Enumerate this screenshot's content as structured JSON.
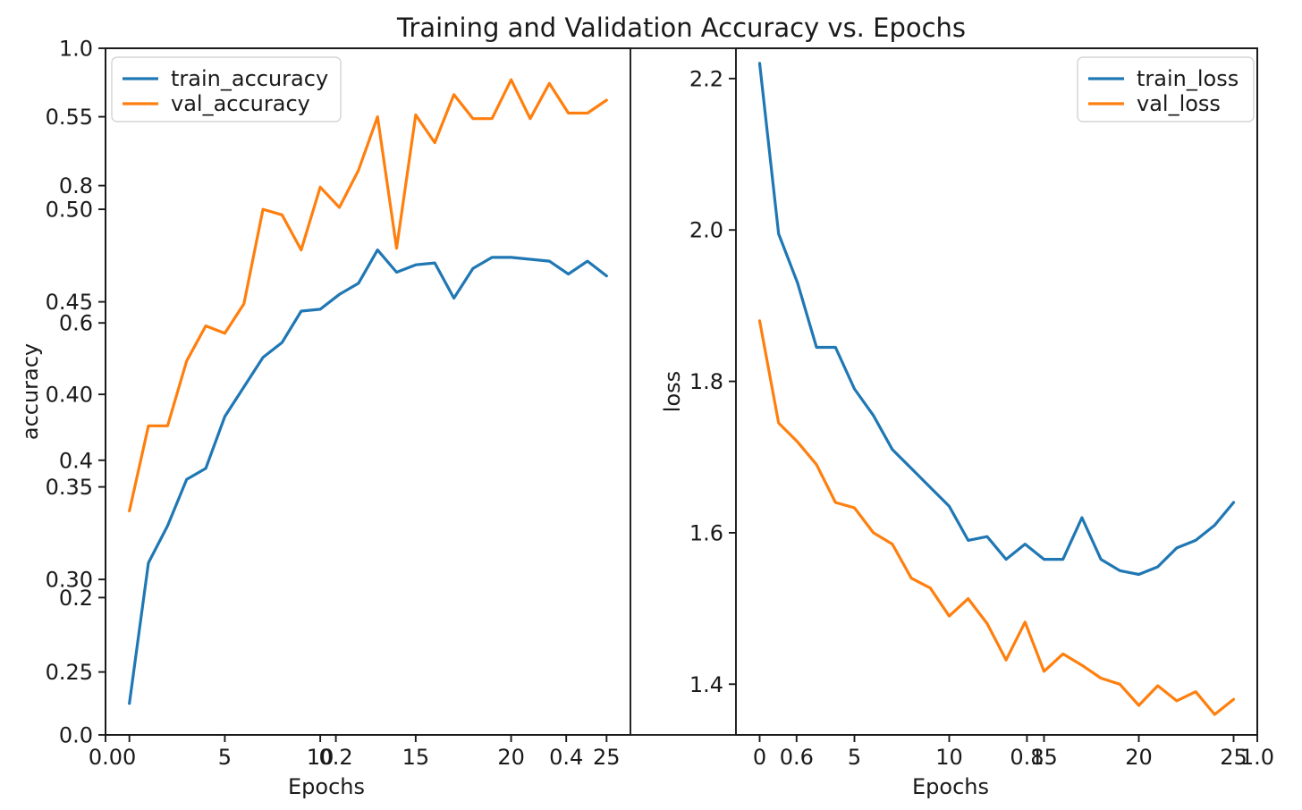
{
  "figure": {
    "title": "Training and Validation Accuracy vs. Epochs",
    "background": "#ffffff",
    "text_color": "#1a1a1a",
    "spine_color": "#1a1a1a"
  },
  "overlay_axes": {
    "xlim": [
      0,
      1
    ],
    "ylim": [
      0,
      1
    ],
    "x_tick_labels": [
      "0.0",
      "0.2",
      "0.4",
      "0.6",
      "0.8",
      "1.0"
    ],
    "y_tick_labels": [
      "0.0",
      "0.2",
      "0.4",
      "0.6",
      "0.8",
      "1.0"
    ]
  },
  "chart_data": [
    {
      "type": "line",
      "title": "",
      "xlabel": "Epochs",
      "ylabel": "accuracy",
      "xlim": [
        -1.25,
        26.25
      ],
      "ylim": [
        0.216,
        0.587
      ],
      "grid": false,
      "legend_position": "upper left",
      "x": [
        0,
        1,
        2,
        3,
        4,
        5,
        6,
        7,
        8,
        9,
        10,
        11,
        12,
        13,
        14,
        15,
        16,
        17,
        18,
        19,
        20,
        21,
        22,
        23,
        24,
        25
      ],
      "xticks": {
        "values": [
          0,
          5,
          10,
          15,
          20,
          25
        ],
        "labels": [
          "0",
          "5",
          "10",
          "15",
          "20",
          "25"
        ]
      },
      "yticks": {
        "values": [
          0.25,
          0.3,
          0.35,
          0.4,
          0.45,
          0.5,
          0.55
        ],
        "labels": [
          "0.25",
          "0.30",
          "0.35",
          "0.40",
          "0.45",
          "0.50",
          "0.55"
        ]
      },
      "series": [
        {
          "name": "train_accuracy",
          "color": "#1f77b4",
          "values": [
            0.233,
            0.309,
            0.329,
            0.354,
            0.36,
            0.388,
            0.404,
            0.42,
            0.428,
            0.445,
            0.446,
            0.454,
            0.46,
            0.478,
            0.466,
            0.47,
            0.471,
            0.452,
            0.468,
            0.474,
            0.474,
            0.473,
            0.472,
            0.465,
            0.472,
            0.464
          ]
        },
        {
          "name": "val_accuracy",
          "color": "#ff7f0e",
          "values": [
            0.337,
            0.383,
            0.383,
            0.418,
            0.437,
            0.433,
            0.449,
            0.5,
            0.497,
            0.478,
            0.512,
            0.501,
            0.521,
            0.55,
            0.479,
            0.551,
            0.536,
            0.562,
            0.549,
            0.549,
            0.57,
            0.549,
            0.568,
            0.552,
            0.552,
            0.559
          ]
        }
      ]
    },
    {
      "type": "line",
      "title": "",
      "xlabel": "Epochs",
      "ylabel": "loss",
      "xlim": [
        -1.25,
        26.25
      ],
      "ylim": [
        1.333,
        2.24
      ],
      "grid": false,
      "legend_position": "upper right",
      "x": [
        0,
        1,
        2,
        3,
        4,
        5,
        6,
        7,
        8,
        9,
        10,
        11,
        12,
        13,
        14,
        15,
        16,
        17,
        18,
        19,
        20,
        21,
        22,
        23,
        24,
        25
      ],
      "xticks": {
        "values": [
          0,
          5,
          10,
          15,
          20,
          25
        ],
        "labels": [
          "0",
          "5",
          "10",
          "15",
          "20",
          "25"
        ]
      },
      "yticks": {
        "values": [
          1.4,
          1.6,
          1.8,
          2.0,
          2.2
        ],
        "labels": [
          "1.4",
          "1.6",
          "1.8",
          "2.0",
          "2.2"
        ]
      },
      "series": [
        {
          "name": "train_loss",
          "color": "#1f77b4",
          "values": [
            2.22,
            1.995,
            1.93,
            1.845,
            1.845,
            1.79,
            1.755,
            1.71,
            1.685,
            1.66,
            1.635,
            1.59,
            1.595,
            1.565,
            1.585,
            1.565,
            1.565,
            1.62,
            1.565,
            1.55,
            1.545,
            1.555,
            1.58,
            1.59,
            1.61,
            1.64
          ]
        },
        {
          "name": "val_loss",
          "color": "#ff7f0e",
          "values": [
            1.88,
            1.745,
            1.72,
            1.69,
            1.64,
            1.633,
            1.6,
            1.585,
            1.54,
            1.527,
            1.49,
            1.513,
            1.48,
            1.432,
            1.482,
            1.417,
            1.44,
            1.425,
            1.408,
            1.4,
            1.372,
            1.398,
            1.378,
            1.39,
            1.36,
            1.38
          ]
        }
      ]
    }
  ]
}
